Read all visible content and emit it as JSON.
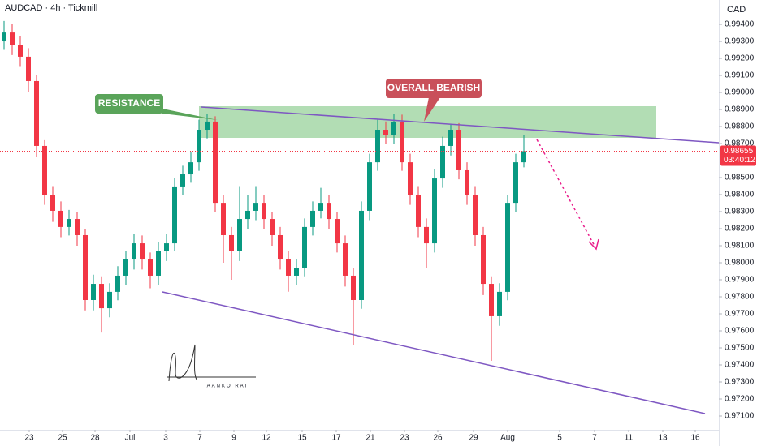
{
  "chart_data": {
    "type": "candlestick",
    "title": "AUDCAD · 4h · Tickmill",
    "currency": "CAD",
    "annotations": [
      "RESISTANCE",
      "OVERALL BEARISH"
    ],
    "signature": "AANKO RAI",
    "countdown": "03:40:12",
    "up_color": "#089981",
    "down_color": "#f23645",
    "xlim": [
      0,
      88.5
    ],
    "xticks": [
      {
        "value": 3.6,
        "label": "23"
      },
      {
        "value": 7.7,
        "label": "25"
      },
      {
        "value": 11.7,
        "label": "28"
      },
      {
        "value": 16.0,
        "label": "Jul"
      },
      {
        "value": 20.4,
        "label": "3"
      },
      {
        "value": 24.6,
        "label": "7"
      },
      {
        "value": 28.8,
        "label": "9"
      },
      {
        "value": 32.8,
        "label": "12"
      },
      {
        "value": 37.2,
        "label": "15"
      },
      {
        "value": 41.4,
        "label": "17"
      },
      {
        "value": 45.6,
        "label": "21"
      },
      {
        "value": 49.8,
        "label": "23"
      },
      {
        "value": 53.9,
        "label": "26"
      },
      {
        "value": 58.3,
        "label": "29"
      },
      {
        "value": 62.5,
        "label": "Aug"
      },
      {
        "value": 68.9,
        "label": "5"
      },
      {
        "value": 73.2,
        "label": "7"
      },
      {
        "value": 77.4,
        "label": "11"
      },
      {
        "value": 81.6,
        "label": "13"
      },
      {
        "value": 85.6,
        "label": "16"
      }
    ],
    "ylim": [
      0.97019,
      0.99543
    ],
    "yticks": [
      {
        "value": 0.971,
        "label": "0.97100"
      },
      {
        "value": 0.972,
        "label": "0.97200"
      },
      {
        "value": 0.973,
        "label": "0.97300"
      },
      {
        "value": 0.974,
        "label": "0.97400"
      },
      {
        "value": 0.975,
        "label": "0.97500"
      },
      {
        "value": 0.976,
        "label": "0.97600"
      },
      {
        "value": 0.977,
        "label": "0.97700"
      },
      {
        "value": 0.978,
        "label": "0.97800"
      },
      {
        "value": 0.979,
        "label": "0.97900"
      },
      {
        "value": 0.98,
        "label": "0.98000"
      },
      {
        "value": 0.981,
        "label": "0.98100"
      },
      {
        "value": 0.982,
        "label": "0.98200"
      },
      {
        "value": 0.983,
        "label": "0.98300"
      },
      {
        "value": 0.984,
        "label": "0.98400"
      },
      {
        "value": 0.985,
        "label": "0.98500"
      },
      {
        "value": 0.987,
        "label": "0.98700"
      },
      {
        "value": 0.988,
        "label": "0.98800"
      },
      {
        "value": 0.989,
        "label": "0.98900"
      },
      {
        "value": 0.99,
        "label": "0.99000"
      },
      {
        "value": 0.991,
        "label": "0.99100"
      },
      {
        "value": 0.992,
        "label": "0.99200"
      },
      {
        "value": 0.993,
        "label": "0.99300"
      },
      {
        "value": 0.994,
        "label": "0.99400"
      }
    ],
    "open": [
      0.993,
      0.99352,
      0.99281,
      0.9921,
      0.99067,
      0.98686,
      0.984,
      0.98305,
      0.9821,
      0.98257,
      0.98162,
      0.97781,
      0.97876,
      0.97733,
      0.97829,
      0.97924,
      0.98019,
      0.98114,
      0.98019,
      0.97924,
      0.98067,
      0.98114,
      0.98448,
      0.98519,
      0.9859,
      0.98781,
      0.98829,
      0.98352,
      0.98162,
      0.98067,
      0.98257,
      0.98305,
      0.98352,
      0.98257,
      0.98162,
      0.98019,
      0.97924,
      0.97971,
      0.9821,
      0.98305,
      0.98352,
      0.98257,
      0.98114,
      0.97924,
      0.97781,
      0.98305,
      0.9859,
      0.98781,
      0.9875,
      0.98829,
      0.9859,
      0.984,
      0.9821,
      0.98114,
      0.98495,
      0.98686,
      0.98781,
      0.98543,
      0.984,
      0.98162,
      0.97876,
      0.97686,
      0.97829,
      0.98352,
      0.9859
    ],
    "high": [
      0.9942,
      0.994,
      0.9933,
      0.9926,
      0.991,
      0.9872,
      0.9845,
      0.9836,
      0.9831,
      0.983,
      0.982,
      0.9793,
      0.9792,
      0.9788,
      0.9798,
      0.9807,
      0.9817,
      0.9816,
      0.9806,
      0.9812,
      0.9817,
      0.985,
      0.9857,
      0.9865,
      0.9884,
      0.98876,
      0.9886,
      0.984,
      0.9821,
      0.9845,
      0.984,
      0.9845,
      0.984,
      0.983,
      0.9821,
      0.9807,
      0.9802,
      0.9826,
      0.9836,
      0.9844,
      0.984,
      0.983,
      0.9816,
      0.9797,
      0.9836,
      0.9864,
      0.9884,
      0.9883,
      0.98876,
      0.9887,
      0.9864,
      0.9845,
      0.9826,
      0.9855,
      0.9874,
      0.9881,
      0.9882,
      0.9859,
      0.9845,
      0.9821,
      0.9792,
      0.9788,
      0.984,
      0.9864,
      0.9875
    ],
    "low": [
      0.9925,
      0.9922,
      0.9915,
      0.99,
      0.9862,
      0.9834,
      0.9824,
      0.9815,
      0.9816,
      0.981,
      0.9772,
      0.9772,
      0.9759,
      0.9768,
      0.9778,
      0.9787,
      0.9796,
      0.9796,
      0.9785,
      0.9787,
      0.9801,
      0.9807,
      0.984,
      0.9847,
      0.9854,
      0.9873,
      0.983,
      0.98,
      0.979,
      0.9801,
      0.982,
      0.9825,
      0.982,
      0.981,
      0.9796,
      0.9783,
      0.9787,
      0.9792,
      0.9816,
      0.9826,
      0.982,
      0.9806,
      0.9786,
      0.97519,
      0.9773,
      0.9825,
      0.9854,
      0.987,
      0.987,
      0.9854,
      0.9834,
      0.9815,
      0.97971,
      0.9806,
      0.9844,
      0.9863,
      0.9849,
      0.9834,
      0.981,
      0.9781,
      0.97424,
      0.9763,
      0.9778,
      0.983,
      0.9856
    ],
    "close": [
      0.99352,
      0.99281,
      0.9921,
      0.99067,
      0.98686,
      0.984,
      0.98305,
      0.9821,
      0.98257,
      0.98162,
      0.97781,
      0.97876,
      0.97733,
      0.97829,
      0.97924,
      0.98019,
      0.98114,
      0.98019,
      0.97924,
      0.98067,
      0.98114,
      0.98448,
      0.98519,
      0.9859,
      0.98781,
      0.98829,
      0.98352,
      0.98162,
      0.98067,
      0.98257,
      0.98305,
      0.98352,
      0.98257,
      0.98162,
      0.98019,
      0.97924,
      0.97971,
      0.9821,
      0.98305,
      0.98352,
      0.98257,
      0.98114,
      0.97924,
      0.97781,
      0.98305,
      0.9859,
      0.98781,
      0.9875,
      0.98829,
      0.9859,
      0.984,
      0.9821,
      0.98114,
      0.98495,
      0.98686,
      0.98781,
      0.98543,
      0.984,
      0.98162,
      0.97876,
      0.97686,
      0.97829,
      0.98352,
      0.9859,
      0.98655
    ]
  }
}
